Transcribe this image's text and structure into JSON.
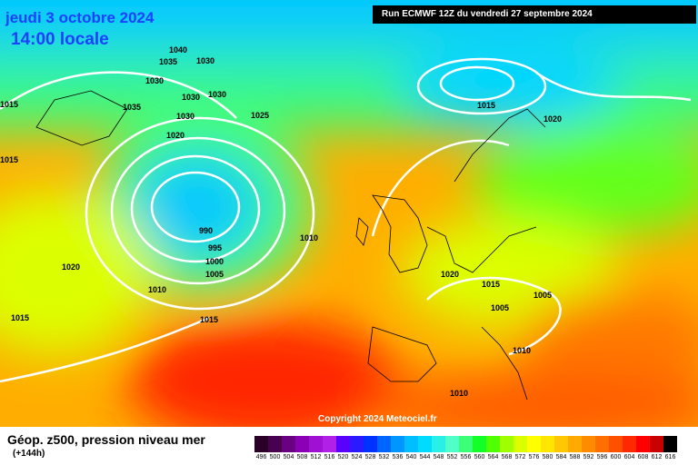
{
  "header": {
    "date": "jeudi 3 octobre 2024",
    "time": "14:00 locale",
    "run": "Run ECMWF 12Z du vendredi 27 septembre 2024"
  },
  "copyright": "Copyright 2024 Meteociel.fr",
  "legend": {
    "title": "Géop. z500, pression niveau mer",
    "subtitle": "(+144h)",
    "ticks": [
      "496",
      "500",
      "504",
      "508",
      "512",
      "516",
      "520",
      "524",
      "528",
      "532",
      "536",
      "540",
      "544",
      "548",
      "552",
      "556",
      "560",
      "564",
      "568",
      "572",
      "576",
      "580",
      "584",
      "588",
      "592",
      "596",
      "600",
      "604",
      "608",
      "612",
      "616"
    ],
    "colors": [
      "#2a0026",
      "#4a0050",
      "#6a0082",
      "#8a00b4",
      "#a010d2",
      "#b020e6",
      "#5a00ff",
      "#2a1aff",
      "#0032ff",
      "#0064ff",
      "#0096ff",
      "#00beff",
      "#00dcff",
      "#28f0e6",
      "#50ffc8",
      "#3cff78",
      "#14ff28",
      "#50ff00",
      "#a0ff00",
      "#dcff00",
      "#ffff00",
      "#ffe600",
      "#ffc800",
      "#ffaa00",
      "#ff8c00",
      "#ff6e00",
      "#ff5000",
      "#ff2800",
      "#ff0000",
      "#c80000",
      "#000000"
    ]
  },
  "pressure_labels": [
    "1040",
    "1035",
    "1030",
    "1030",
    "1030",
    "1030",
    "1035",
    "1030",
    "1020",
    "1025",
    "1015",
    "1015",
    "990",
    "995",
    "1000",
    "1005",
    "1010",
    "1010",
    "1020",
    "1015",
    "1015",
    "1020",
    "1015",
    "1015",
    "1005",
    "1005",
    "1010",
    "1010"
  ]
}
